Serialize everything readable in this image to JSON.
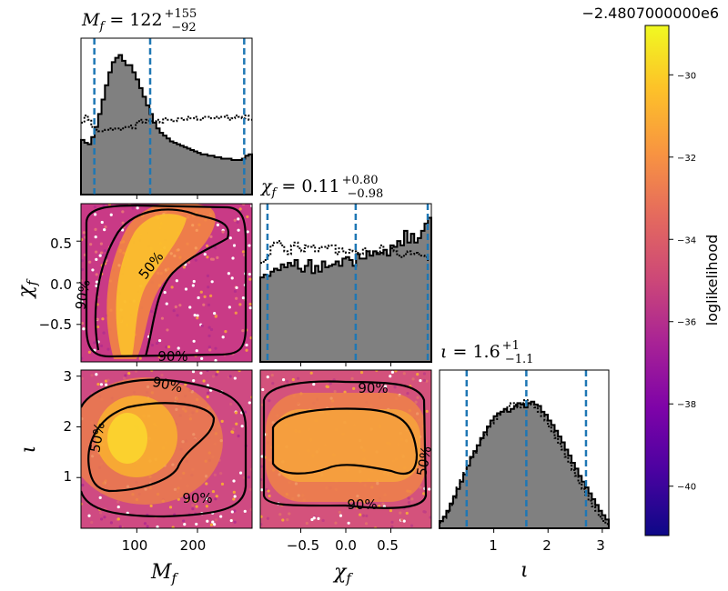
{
  "chart_data": {
    "type": "corner",
    "offset_label": "−2.4807000000e6",
    "colorbar": {
      "label": "loglikelihood",
      "ticks": [
        "−30",
        "−32",
        "−34",
        "−36",
        "−38",
        "−40"
      ],
      "tick_values": [
        -30,
        -32,
        -34,
        -36,
        -38,
        -40
      ],
      "range": [
        -41.2,
        -28.8
      ],
      "colormap": "plasma"
    },
    "parameters": [
      {
        "name": "M_f",
        "range": [
          8,
          290
        ],
        "ticks": [
          "100",
          "200"
        ],
        "tick_values": [
          100,
          200
        ],
        "quantiles": [
          30,
          122,
          277
        ],
        "median": "122",
        "plus": "+155",
        "minus": "−92"
      },
      {
        "name": "chi_f",
        "range": [
          -0.95,
          0.95
        ],
        "ticks": [
          "0.5",
          "0.0",
          "−0.5"
        ],
        "xticks": [
          "−0.5",
          "0.0",
          "0.5"
        ],
        "tick_values": [
          0.5,
          0.0,
          -0.5
        ],
        "quantiles": [
          -0.87,
          0.11,
          0.91
        ],
        "median": "0.11",
        "plus": "+0.80",
        "minus": "−0.98"
      },
      {
        "name": "iota",
        "range": [
          0.0,
          3.12
        ],
        "ticks": [
          "3",
          "2",
          "1"
        ],
        "xticks": [
          "1",
          "2",
          "3"
        ],
        "tick_values": [
          3,
          2,
          1
        ],
        "quantiles": [
          0.5,
          1.6,
          2.7
        ],
        "median": "1.6",
        "plus": "+1",
        "minus": "−1.1"
      }
    ],
    "histograms": {
      "M_f": {
        "posterior": [
          0.38,
          0.36,
          0.35,
          0.4,
          0.47,
          0.56,
          0.66,
          0.76,
          0.85,
          0.92,
          0.95,
          0.97,
          0.93,
          0.9,
          0.9,
          0.85,
          0.8,
          0.74,
          0.68,
          0.62,
          0.56,
          0.5,
          0.46,
          0.43,
          0.41,
          0.39,
          0.37,
          0.36,
          0.35,
          0.34,
          0.33,
          0.32,
          0.31,
          0.3,
          0.29,
          0.28,
          0.28,
          0.27,
          0.27,
          0.26,
          0.26,
          0.25,
          0.25,
          0.25,
          0.24,
          0.24,
          0.24,
          0.25,
          0.27,
          0.28
        ],
        "prior": [
          0.5,
          0.55,
          0.52,
          0.47,
          0.45,
          0.44,
          0.44,
          0.45,
          0.46,
          0.45,
          0.46,
          0.45,
          0.46,
          0.47,
          0.48,
          0.46,
          0.5,
          0.52,
          0.5,
          0.52,
          0.51,
          0.51,
          0.52,
          0.5,
          0.53,
          0.52,
          0.52,
          0.51,
          0.53,
          0.53,
          0.52,
          0.54,
          0.53,
          0.54,
          0.52,
          0.53,
          0.54,
          0.54,
          0.53,
          0.54,
          0.53,
          0.54,
          0.55,
          0.52,
          0.53,
          0.55,
          0.54,
          0.53,
          0.55,
          0.52
        ]
      },
      "chi_f": {
        "posterior": [
          0.58,
          0.6,
          0.59,
          0.62,
          0.64,
          0.63,
          0.67,
          0.65,
          0.68,
          0.66,
          0.7,
          0.64,
          0.62,
          0.66,
          0.7,
          0.61,
          0.66,
          0.62,
          0.69,
          0.65,
          0.66,
          0.67,
          0.69,
          0.66,
          0.71,
          0.72,
          0.7,
          0.66,
          0.74,
          0.71,
          0.71,
          0.76,
          0.73,
          0.76,
          0.74,
          0.75,
          0.77,
          0.73,
          0.8,
          0.79,
          0.83,
          0.8,
          0.9,
          0.82,
          0.88,
          0.82,
          0.85,
          0.9,
          0.95,
          0.99
        ],
        "prior": [
          0.68,
          0.7,
          0.73,
          0.8,
          0.82,
          0.83,
          0.8,
          0.76,
          0.74,
          0.8,
          0.82,
          0.78,
          0.76,
          0.8,
          0.79,
          0.8,
          0.76,
          0.78,
          0.79,
          0.78,
          0.8,
          0.8,
          0.74,
          0.78,
          0.76,
          0.75,
          0.77,
          0.76,
          0.75,
          0.74,
          0.78,
          0.76,
          0.73,
          0.76,
          0.75,
          0.8,
          0.74,
          0.74,
          0.78,
          0.76,
          0.73,
          0.72,
          0.74,
          0.76,
          0.74,
          0.75,
          0.74,
          0.73,
          0.72,
          0.7
        ]
      },
      "iota": {
        "posterior": [
          0.05,
          0.08,
          0.12,
          0.17,
          0.22,
          0.27,
          0.32,
          0.37,
          0.43,
          0.49,
          0.53,
          0.57,
          0.62,
          0.66,
          0.7,
          0.74,
          0.77,
          0.79,
          0.8,
          0.82,
          0.8,
          0.82,
          0.84,
          0.86,
          0.85,
          0.83,
          0.86,
          0.87,
          0.85,
          0.84,
          0.8,
          0.78,
          0.74,
          0.71,
          0.67,
          0.63,
          0.59,
          0.54,
          0.5,
          0.45,
          0.41,
          0.36,
          0.32,
          0.28,
          0.24,
          0.2,
          0.16,
          0.12,
          0.09,
          0.06
        ],
        "prior": [
          0.04,
          0.07,
          0.11,
          0.16,
          0.21,
          0.28,
          0.33,
          0.38,
          0.43,
          0.48,
          0.52,
          0.57,
          0.61,
          0.64,
          0.69,
          0.72,
          0.75,
          0.78,
          0.8,
          0.81,
          0.84,
          0.86,
          0.85,
          0.83,
          0.86,
          0.88,
          0.86,
          0.85,
          0.83,
          0.8,
          0.77,
          0.74,
          0.7,
          0.66,
          0.62,
          0.58,
          0.54,
          0.49,
          0.45,
          0.4,
          0.36,
          0.31,
          0.27,
          0.23,
          0.19,
          0.15,
          0.12,
          0.08,
          0.05,
          0.03
        ]
      }
    },
    "contours": [
      {
        "panel": "chi_f_vs_M_f",
        "labels": [
          "50%",
          "90%",
          "90%"
        ],
        "levels": [
          0.5,
          0.9
        ]
      },
      {
        "panel": "iota_vs_M_f",
        "labels": [
          "90%",
          "50%",
          "90%"
        ],
        "levels": [
          0.5,
          0.9
        ]
      },
      {
        "panel": "iota_vs_chi_f",
        "labels": [
          "90%",
          "50%",
          "90%"
        ],
        "levels": [
          0.5,
          0.9
        ]
      }
    ]
  }
}
